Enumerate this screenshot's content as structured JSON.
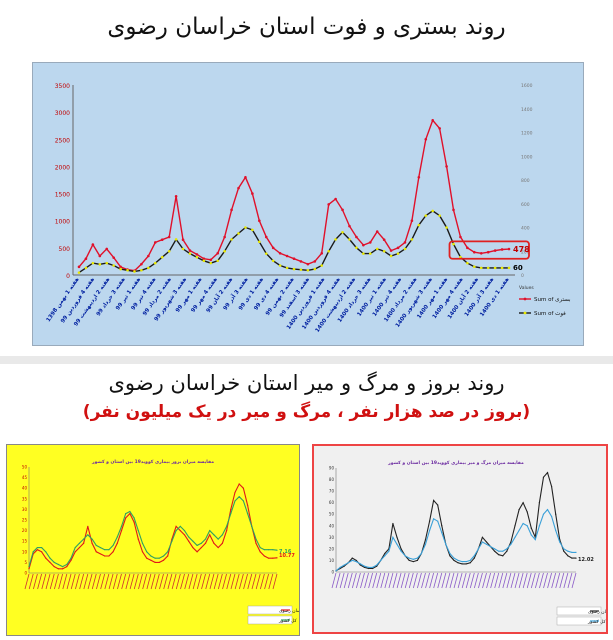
{
  "titles": {
    "top": "روند بستری و فوت استان خراسان رضوی",
    "bottom": "روند بروز و مرگ و میر استان خراسان رضوی",
    "bottom_sub": "(بروز در صد هزار نفر ، مرگ و میر در یک میلیون نفر)"
  },
  "chart_data": [
    {
      "type": "line",
      "title": "",
      "yleft_lim": [
        0,
        3500
      ],
      "yleft_ticks": [
        "0",
        "500",
        "1000",
        "1500",
        "2000",
        "2500",
        "3000",
        "3500"
      ],
      "yright_lim": [
        0,
        1600
      ],
      "yright_ticks": [
        "0",
        "200",
        "400",
        "600",
        "800",
        "1000",
        "1200",
        "1400",
        "1600"
      ],
      "x_labels": [
        "1398 هفته 1 بهمن",
        "99 هفته 4 فروردین",
        "99 هفته 2 اردیبهشت",
        "99 هفته 3 خرداد",
        "99 هفته 1 تیر",
        "99 هفته 4 تیر",
        "99 هفته 2 مرداد",
        "99 هفته 3 شهریور",
        "99 هفته 1 مهر",
        "99 هفته 4 مهر",
        "99 هفته 2 آبان",
        "99 هفته 3 آذر",
        "99 هفته 1 دی",
        "99 هفته 4 دی",
        "99 هفته 2 بهمن",
        "99 هفته 3 اسفند",
        "1400 هفته 1 فروردین",
        "1400 هفته 4 فروردین",
        "1400 هفته 2 اردیبهشت",
        "1400 هفته 3 خرداد",
        "1400 هفته 1 تیر",
        "1400 هفته 4 تیر",
        "1400 هفته 2 مرداد",
        "1400 هفته 3 شهریور",
        "1400 هفته 1 مهر",
        "1400 هفته 4 مهر",
        "1400 هفته 2 آبان",
        "1400 هفته 3 آذر",
        "1400 هفته 1 دی"
      ],
      "legend_title": "Values",
      "series": [
        {
          "name": "Sum of بستری",
          "axis": "left",
          "color": "#e0102a",
          "values": [
            150,
            300,
            560,
            350,
            480,
            320,
            150,
            100,
            80,
            200,
            350,
            600,
            650,
            700,
            1450,
            650,
            450,
            380,
            300,
            280,
            400,
            700,
            1200,
            1600,
            1800,
            1500,
            1000,
            700,
            500,
            400,
            350,
            300,
            250,
            200,
            250,
            400,
            1300,
            1400,
            1200,
            900,
            700,
            550,
            600,
            800,
            650,
            450,
            500,
            600,
            1000,
            1800,
            2500,
            2850,
            2700,
            2000,
            1200,
            700,
            500,
            420,
            400,
            420,
            450,
            470,
            478
          ],
          "end_label": "478"
        },
        {
          "name": "Sum of فوت",
          "axis": "right",
          "color": "#1a1a1a",
          "marker_color": "#e8e800",
          "values": [
            20,
            60,
            100,
            90,
            100,
            80,
            50,
            40,
            30,
            40,
            60,
            100,
            150,
            200,
            300,
            220,
            180,
            150,
            120,
            100,
            120,
            200,
            300,
            350,
            400,
            380,
            280,
            180,
            120,
            80,
            60,
            50,
            45,
            40,
            50,
            80,
            200,
            300,
            360,
            300,
            230,
            180,
            180,
            220,
            200,
            160,
            180,
            220,
            300,
            420,
            500,
            540,
            500,
            400,
            260,
            150,
            100,
            70,
            60,
            60,
            60,
            60,
            60
          ],
          "end_label": "60"
        }
      ],
      "highlight_box_color": "#e02020"
    },
    {
      "type": "line",
      "title": "مقایسه میزان بروز بیماری کووید19 بین استان و کشور",
      "ylim": [
        0,
        50
      ],
      "y_ticks": [
        "0",
        "5",
        "10",
        "15",
        "20",
        "25",
        "30",
        "35",
        "40",
        "45",
        "50"
      ],
      "series": [
        {
          "name": "خراسان رضوی",
          "color": "#e01818",
          "values": [
            2,
            9,
            11,
            10,
            7,
            5,
            3,
            2,
            2,
            3,
            6,
            10,
            12,
            14,
            22,
            14,
            10,
            9,
            8,
            8,
            10,
            14,
            20,
            26,
            28,
            24,
            16,
            10,
            7,
            6,
            5,
            5,
            6,
            8,
            16,
            22,
            20,
            18,
            15,
            12,
            10,
            12,
            14,
            18,
            14,
            12,
            14,
            20,
            30,
            38,
            42,
            40,
            32,
            22,
            14,
            10,
            8,
            7,
            7,
            7.16
          ]
        },
        {
          "name": "کل کشور",
          "color": "#30a060",
          "values": [
            3,
            10,
            12,
            12,
            10,
            7,
            5,
            4,
            3,
            4,
            7,
            12,
            14,
            16,
            18,
            16,
            13,
            12,
            11,
            11,
            13,
            17,
            22,
            28,
            29,
            26,
            20,
            14,
            10,
            8,
            7,
            7,
            8,
            10,
            15,
            20,
            22,
            20,
            17,
            15,
            13,
            14,
            16,
            20,
            18,
            16,
            18,
            22,
            28,
            34,
            36,
            34,
            28,
            22,
            16,
            12,
            11,
            11,
            11,
            10.77
          ]
        }
      ],
      "end_labels": [
        "10.77",
        "7.16"
      ]
    },
    {
      "type": "line",
      "title": "مقایسه میزان مرگ و میر بیماری کووید19 بین استان و کشور",
      "ylim": [
        0,
        90
      ],
      "y_ticks": [
        "0",
        "10",
        "20",
        "30",
        "40",
        "50",
        "60",
        "70",
        "80",
        "90"
      ],
      "series": [
        {
          "name": "خراسان رضوی",
          "color": "#222222",
          "values": [
            1,
            3,
            5,
            8,
            12,
            10,
            6,
            4,
            3,
            3,
            5,
            10,
            16,
            20,
            42,
            30,
            20,
            14,
            10,
            9,
            10,
            16,
            28,
            44,
            62,
            58,
            40,
            24,
            14,
            10,
            8,
            7,
            7,
            8,
            12,
            20,
            30,
            26,
            22,
            18,
            15,
            14,
            18,
            26,
            40,
            54,
            60,
            52,
            38,
            30,
            60,
            82,
            86,
            74,
            50,
            28,
            18,
            14,
            12,
            12.02
          ]
        },
        {
          "name": "کل کشور",
          "color": "#3aa0d8",
          "values": [
            1,
            4,
            6,
            8,
            10,
            9,
            7,
            5,
            4,
            4,
            6,
            10,
            14,
            18,
            30,
            24,
            18,
            14,
            12,
            11,
            12,
            16,
            24,
            36,
            46,
            44,
            34,
            24,
            16,
            12,
            10,
            9,
            9,
            10,
            14,
            20,
            26,
            24,
            22,
            20,
            18,
            18,
            20,
            24,
            30,
            36,
            42,
            40,
            32,
            28,
            40,
            50,
            54,
            48,
            36,
            26,
            20,
            18,
            17,
            17
          ]
        }
      ],
      "end_labels": [
        "12.02"
      ]
    }
  ]
}
